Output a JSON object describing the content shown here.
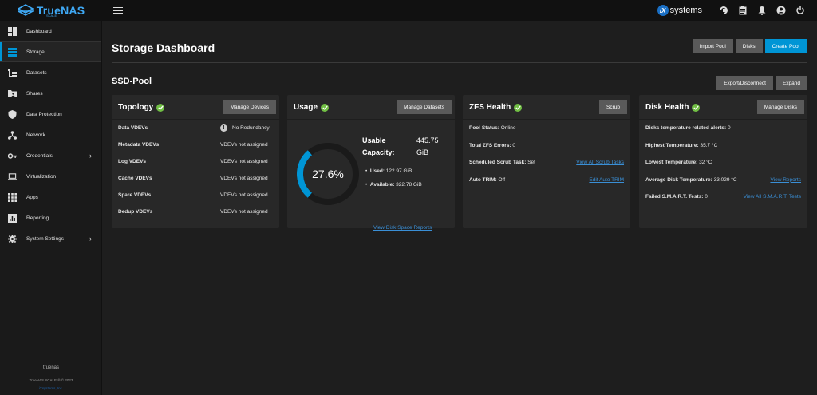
{
  "app": {
    "brand": "TrueNAS",
    "brand_sub": "SCALE",
    "vendor": "systems",
    "vendor_mark": "iX"
  },
  "sidebar": {
    "items": [
      {
        "label": "Dashboard",
        "icon": "dashboard-icon"
      },
      {
        "label": "Storage",
        "icon": "storage-icon",
        "active": true
      },
      {
        "label": "Datasets",
        "icon": "datasets-icon"
      },
      {
        "label": "Shares",
        "icon": "shares-icon"
      },
      {
        "label": "Data Protection",
        "icon": "shield-icon"
      },
      {
        "label": "Network",
        "icon": "network-icon"
      },
      {
        "label": "Credentials",
        "icon": "key-icon",
        "chevron": true
      },
      {
        "label": "Virtualization",
        "icon": "laptop-icon"
      },
      {
        "label": "Apps",
        "icon": "apps-icon"
      },
      {
        "label": "Reporting",
        "icon": "chart-icon"
      },
      {
        "label": "System Settings",
        "icon": "gear-icon",
        "chevron": true
      }
    ],
    "footer": {
      "hostname": "truenas",
      "copyright": "TrueNAS SCALE ® © 2023",
      "company": "iXsystems, Inc."
    }
  },
  "header": {
    "title": "Storage Dashboard",
    "import_pool": "Import Pool",
    "disks": "Disks",
    "create_pool": "Create Pool"
  },
  "pool": {
    "name": "SSD-Pool",
    "export": "Export/Disconnect",
    "expand": "Expand"
  },
  "topology": {
    "title": "Topology",
    "button": "Manage Devices",
    "rows": [
      {
        "label": "Data VDEVs",
        "value": "No Redundancy"
      },
      {
        "label": "Metadata VDEVs",
        "value": "VDEVs not assigned"
      },
      {
        "label": "Log VDEVs",
        "value": "VDEVs not assigned"
      },
      {
        "label": "Cache VDEVs",
        "value": "VDEVs not assigned"
      },
      {
        "label": "Spare VDEVs",
        "value": "VDEVs not assigned"
      },
      {
        "label": "Dedup VDEVs",
        "value": "VDEVs not assigned"
      }
    ]
  },
  "usage": {
    "title": "Usage",
    "button": "Manage Datasets",
    "percent_label": "27.6%",
    "percent_value": 27.6,
    "usable_label": "Usable",
    "capacity_label": "Capacity:",
    "total_value": "445.75",
    "total_unit": "GiB",
    "used_label": "Used:",
    "used_value": "122.97 GiB",
    "available_label": "Available:",
    "available_value": "322.78 GiB",
    "link": "View Disk Space Reports"
  },
  "zfs": {
    "title": "ZFS Health",
    "button": "Scrub",
    "rows": [
      {
        "label": "Pool Status:",
        "value": "Online",
        "link": ""
      },
      {
        "label": "Total ZFS Errors:",
        "value": "0",
        "link": ""
      },
      {
        "label": "Scheduled Scrub Task:",
        "value": "Set",
        "link": "View All Scrub Tasks"
      },
      {
        "label": "Auto TRIM:",
        "value": "Off",
        "link": "Edit Auto TRIM"
      }
    ]
  },
  "disk": {
    "title": "Disk Health",
    "button": "Manage Disks",
    "rows": [
      {
        "label": "Disks temperature related alerts:",
        "value": "0",
        "link": ""
      },
      {
        "label": "Highest Temperature:",
        "value": "35.7 °C",
        "link": ""
      },
      {
        "label": "Lowest Temperature:",
        "value": "32 °C",
        "link": ""
      },
      {
        "label": "Average Disk Temperature:",
        "value": "33.029 °C",
        "link": "View Reports"
      },
      {
        "label": "Failed S.M.A.R.T. Tests:",
        "value": "0",
        "link": "View All S.M.A.R.T. Tests"
      }
    ]
  },
  "colors": {
    "accent": "#0095d5",
    "ok": "#71bf44",
    "link": "#3a8fd6",
    "gauge_track": "#1a1a1a"
  }
}
